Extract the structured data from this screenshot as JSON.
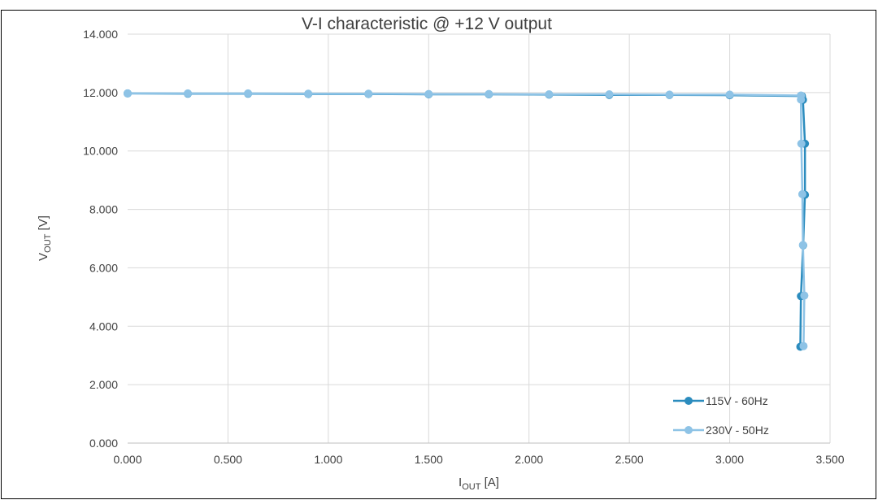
{
  "chart_data": {
    "type": "line",
    "title": "V-I characteristic @ +12 V output",
    "xlabel": {
      "main": "I",
      "sub": "OUT",
      "unit": " [A]"
    },
    "ylabel": {
      "main": "V",
      "sub": "OUT",
      "unit": " [V]"
    },
    "xlim": [
      0,
      3.5
    ],
    "ylim": [
      0,
      14
    ],
    "x_ticks": [
      "0.000",
      "0.500",
      "1.000",
      "1.500",
      "2.000",
      "2.500",
      "3.000",
      "3.500"
    ],
    "y_ticks": [
      "0.000",
      "2.000",
      "4.000",
      "6.000",
      "8.000",
      "10.000",
      "12.000",
      "14.000"
    ],
    "grid": true,
    "legend_position": "bottom-right",
    "series": [
      {
        "name": "115V - 60Hz",
        "color": "#2b8cbe",
        "points": [
          [
            0.0,
            11.97
          ],
          [
            0.3,
            11.96
          ],
          [
            0.6,
            11.96
          ],
          [
            0.9,
            11.95
          ],
          [
            1.2,
            11.95
          ],
          [
            1.5,
            11.94
          ],
          [
            1.8,
            11.94
          ],
          [
            2.1,
            11.93
          ],
          [
            2.4,
            11.92
          ],
          [
            2.7,
            11.92
          ],
          [
            3.0,
            11.91
          ],
          [
            3.36,
            11.88
          ],
          [
            3.365,
            11.75
          ],
          [
            3.375,
            10.25
          ],
          [
            3.375,
            8.5
          ],
          [
            3.366,
            6.77
          ],
          [
            3.355,
            5.03
          ],
          [
            3.352,
            3.3
          ]
        ]
      },
      {
        "name": "230V - 50Hz",
        "color": "#8ec3e6",
        "points": [
          [
            0.0,
            11.97
          ],
          [
            0.3,
            11.97
          ],
          [
            0.6,
            11.97
          ],
          [
            0.9,
            11.96
          ],
          [
            1.2,
            11.96
          ],
          [
            1.5,
            11.95
          ],
          [
            1.8,
            11.95
          ],
          [
            2.1,
            11.94
          ],
          [
            2.4,
            11.94
          ],
          [
            2.7,
            11.93
          ],
          [
            3.0,
            11.93
          ],
          [
            3.355,
            11.9
          ],
          [
            3.355,
            11.76
          ],
          [
            3.357,
            10.25
          ],
          [
            3.362,
            8.52
          ],
          [
            3.365,
            6.78
          ],
          [
            3.372,
            5.05
          ],
          [
            3.368,
            3.32
          ]
        ]
      }
    ]
  }
}
